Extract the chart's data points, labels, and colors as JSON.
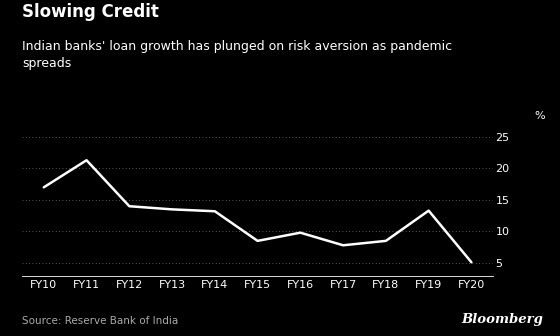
{
  "title": "Slowing Credit",
  "subtitle": "Indian banks' loan growth has plunged on risk aversion as pandemic\nspreads",
  "source": "Source: Reserve Bank of India",
  "watermark": "Bloomberg",
  "x_labels": [
    "FY10",
    "FY11",
    "FY12",
    "FY13",
    "FY14",
    "FY15",
    "FY16",
    "FY17",
    "FY18",
    "FY19",
    "FY20"
  ],
  "y_values": [
    17.0,
    21.3,
    14.0,
    13.5,
    13.2,
    8.5,
    9.8,
    7.8,
    8.5,
    13.3,
    5.1
  ],
  "ylim": [
    3,
    27
  ],
  "yticks": [
    5,
    10,
    15,
    20,
    25
  ],
  "y_label": "%",
  "line_color": "#ffffff",
  "background_color": "#000000",
  "text_color": "#ffffff",
  "title_fontsize": 12,
  "subtitle_fontsize": 9,
  "axis_fontsize": 8,
  "source_fontsize": 7.5,
  "line_width": 1.8
}
